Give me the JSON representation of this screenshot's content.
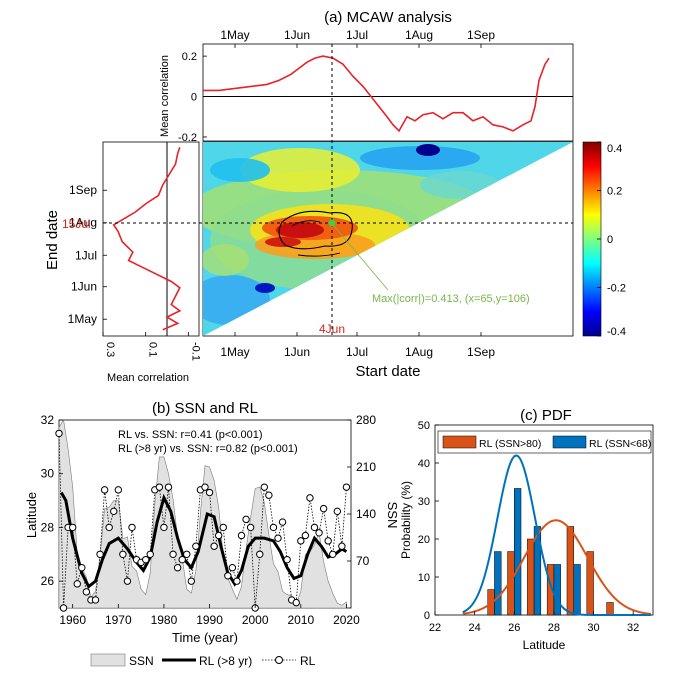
{
  "chart_data": [
    {
      "id": "mcaw",
      "type": "heatmap",
      "title": "(a) MCAW analysis",
      "xlabel": "Start date",
      "ylabel": "End date",
      "x_ticks": [
        "1May",
        "1Jun",
        "1Jul",
        "1Aug",
        "1Sep"
      ],
      "y_ticks": [
        "1May",
        "1Jun",
        "1Jul",
        "1Aug",
        "1Sep"
      ],
      "highlight_start_label": "4Jun",
      "highlight_end_label": "15Jul",
      "annotation": "Max(|corr|)=0.413, (x=65,y=106)",
      "annotation_color": "#7ab648",
      "colorbar": {
        "min": -0.4,
        "max": 0.4,
        "ticks": [
          0.4,
          0.2,
          0,
          -0.2,
          -0.4
        ],
        "tick_labels": [
          "0.4",
          "0.2",
          "0",
          "-0.2",
          "-0.4"
        ],
        "colormap": "jet"
      },
      "top_profile": {
        "ylabel": "Mean correlation",
        "ylim": [
          -0.22,
          0.26
        ],
        "ticks": [
          0.2,
          0,
          -0.2
        ],
        "tick_labels": [
          "0.2",
          "0",
          "-0.2"
        ],
        "x_day": [
          0,
          8,
          16,
          24,
          32,
          38,
          44,
          48,
          52,
          56,
          60,
          65,
          70,
          75,
          80,
          84,
          88,
          92,
          95,
          98,
          102,
          106,
          110,
          115,
          120,
          125,
          130,
          135,
          140,
          145,
          150,
          155,
          160,
          164,
          166,
          168,
          171,
          173
        ],
        "values": [
          0.03,
          0.03,
          0.04,
          0.05,
          0.06,
          0.08,
          0.11,
          0.14,
          0.17,
          0.19,
          0.2,
          0.19,
          0.16,
          0.1,
          0.05,
          0.0,
          -0.05,
          -0.1,
          -0.14,
          -0.17,
          -0.1,
          -0.12,
          -0.09,
          -0.08,
          -0.11,
          -0.08,
          -0.08,
          -0.12,
          -0.1,
          -0.14,
          -0.15,
          -0.17,
          -0.14,
          -0.12,
          -0.05,
          0.08,
          0.16,
          0.19
        ]
      },
      "left_profile": {
        "xlabel": "Mean correlation",
        "xlim": [
          0.3,
          -0.15
        ],
        "ticks": [
          0.3,
          0.1,
          -0.1
        ],
        "tick_labels": [
          "0.3",
          "0.1",
          "-0.1"
        ],
        "y_day": [
          6,
          12,
          18,
          24,
          30,
          38,
          46,
          52,
          60,
          66,
          72,
          80,
          90,
          100,
          106,
          112,
          118,
          126,
          134,
          144,
          154,
          164,
          174,
          180
        ],
        "values": [
          0.02,
          -0.05,
          0.0,
          -0.06,
          -0.02,
          -0.04,
          -0.06,
          -0.02,
          0.06,
          0.12,
          0.18,
          0.16,
          0.21,
          0.23,
          0.25,
          0.2,
          0.15,
          0.1,
          0.04,
          0.02,
          -0.01,
          -0.04,
          -0.05,
          -0.06
        ]
      }
    },
    {
      "id": "ssn_rl",
      "type": "line",
      "title": "(b) SSN and RL",
      "xlabel": "Time (year)",
      "ylabel": "Latitude",
      "y2label": "SSN",
      "xlim": [
        1957,
        2021
      ],
      "ylim": [
        25,
        32
      ],
      "y2lim": [
        0,
        280
      ],
      "x_ticks": [
        1960,
        1970,
        1980,
        1990,
        2000,
        2010,
        2020
      ],
      "y_ticks": [
        26,
        28,
        30,
        32
      ],
      "y2_ticks": [
        70,
        140,
        210,
        280
      ],
      "stats_line1": "RL  vs. SSN: r=0.41 (p<0.001)",
      "stats_line2": "RL  (>8 yr) vs. SSN: r=0.82 (p<0.001)",
      "legend": [
        "SSN",
        "RL (>8 yr)",
        "RL"
      ],
      "series": [
        {
          "name": "SSN",
          "x": [
            1957,
            1958,
            1959,
            1960,
            1961,
            1962,
            1963,
            1964,
            1965,
            1966,
            1967,
            1968,
            1969,
            1970,
            1971,
            1972,
            1973,
            1974,
            1975,
            1976,
            1977,
            1978,
            1979,
            1980,
            1981,
            1982,
            1983,
            1984,
            1985,
            1986,
            1987,
            1988,
            1989,
            1990,
            1991,
            1992,
            1993,
            1994,
            1995,
            1996,
            1997,
            1998,
            1999,
            2000,
            2001,
            2002,
            2003,
            2004,
            2005,
            2006,
            2007,
            2008,
            2009,
            2010,
            2011,
            2012,
            2013,
            2014,
            2015,
            2016,
            2017,
            2018,
            2019,
            2020
          ],
          "values": [
            269,
            285,
            237,
            180,
            80,
            60,
            46,
            16,
            25,
            77,
            148,
            150,
            160,
            160,
            103,
            106,
            62,
            55,
            28,
            20,
            52,
            155,
            225,
            225,
            200,
            162,
            105,
            75,
            28,
            22,
            56,
            142,
            212,
            210,
            190,
            150,
            78,
            45,
            28,
            13,
            32,
            88,
            135,
            178,
            180,
            157,
            109,
            66,
            54,
            25,
            20,
            18,
            5,
            25,
            80,
            84,
            94,
            113,
            69,
            40,
            22,
            7,
            4,
            9
          ]
        },
        {
          "name": "RL (>8 yr)",
          "x": [
            1957.5,
            1958.5,
            1960,
            1962,
            1963.5,
            1965,
            1966.5,
            1968,
            1970,
            1972,
            1974,
            1975.5,
            1977,
            1978.5,
            1980,
            1981.5,
            1983,
            1984.5,
            1986,
            1987.5,
            1989.5,
            1991,
            1992.5,
            1994,
            1995.5,
            1997,
            1998.5,
            2000,
            2002,
            2004,
            2005.5,
            2007,
            2008.5,
            2010,
            2011.5,
            2013,
            2014.5,
            2016,
            2017.5,
            2019,
            2020
          ],
          "values": [
            29.3,
            29.0,
            27.6,
            26.3,
            25.8,
            26.0,
            26.8,
            27.4,
            27.6,
            27.2,
            26.7,
            26.4,
            26.9,
            28.2,
            29.1,
            28.6,
            27.6,
            26.8,
            26.5,
            27.1,
            28.5,
            28.4,
            27.3,
            26.3,
            25.9,
            26.4,
            27.3,
            27.6,
            27.6,
            27.5,
            27.1,
            26.5,
            26.1,
            26.2,
            27.0,
            27.6,
            27.3,
            26.9,
            27.0,
            27.2,
            27.1
          ]
        },
        {
          "name": "RL",
          "x": [
            1957,
            1958,
            1959,
            1960,
            1961,
            1962,
            1963,
            1964,
            1965,
            1966,
            1967,
            1968,
            1969,
            1970,
            1971,
            1972,
            1973,
            1974,
            1975,
            1976,
            1977,
            1978,
            1979,
            1980,
            1981,
            1982,
            1983,
            1984,
            1985,
            1986,
            1987,
            1988,
            1989,
            1990,
            1991,
            1992,
            1993,
            1994,
            1995,
            1996,
            1997,
            1998,
            1999,
            2000,
            2001,
            2002,
            2003,
            2004,
            2005,
            2006,
            2007,
            2008,
            2009,
            2010,
            2011,
            2012,
            2013,
            2014,
            2015,
            2016,
            2017,
            2018,
            2019,
            2020
          ],
          "values": [
            31.5,
            25.0,
            28.0,
            28.0,
            25.9,
            26.5,
            25.6,
            25.3,
            25.3,
            27.0,
            29.4,
            28.0,
            28.6,
            29.4,
            27.0,
            26.0,
            28.0,
            26.8,
            26.7,
            26.8,
            27.0,
            29.4,
            29.5,
            28.0,
            29.5,
            27.0,
            26.5,
            26.8,
            27.0,
            26.0,
            27.3,
            29.4,
            29.5,
            29.3,
            27.3,
            27.7,
            28.0,
            26.2,
            26.5,
            26.0,
            27.7,
            28.3,
            28.0,
            25.0,
            27.0,
            29.5,
            29.2,
            28.0,
            27.6,
            28.2,
            26.8,
            25.3,
            25.2,
            27.5,
            27.7,
            29.1,
            28.0,
            27.8,
            28.7,
            27.5,
            27.0,
            28.6,
            27.3,
            29.5
          ]
        }
      ]
    },
    {
      "id": "pdf",
      "type": "bar",
      "title": "(c) PDF",
      "xlabel": "Latitude",
      "ylabel": "Probability (%)",
      "xlim": [
        22,
        33
      ],
      "ylim": [
        0,
        50
      ],
      "x_ticks": [
        22,
        24,
        26,
        28,
        30,
        32
      ],
      "y_ticks": [
        0,
        10,
        20,
        30,
        40,
        50
      ],
      "bin_centers": [
        25,
        26,
        27,
        28,
        29,
        30,
        31
      ],
      "series": [
        {
          "name": "RL (SSN>80)",
          "color": "#d95319",
          "values": [
            6.7,
            16.7,
            20.0,
            13.3,
            23.3,
            16.7,
            3.3
          ],
          "fit": {
            "mean": 28.1,
            "sd": 1.6
          }
        },
        {
          "name": "RL (SSN<68)",
          "color": "#0072bd",
          "values": [
            16.7,
            33.3,
            23.3,
            13.3,
            13.3,
            0,
            0
          ],
          "fit": {
            "mean": 26.1,
            "sd": 0.95
          }
        }
      ]
    }
  ]
}
